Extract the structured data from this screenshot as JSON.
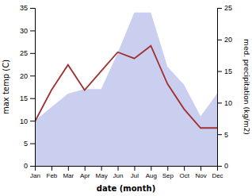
{
  "chart_data": {
    "type": "area",
    "categories": [
      "Jan",
      "Feb",
      "Mar",
      "Apr",
      "May",
      "Jun",
      "Jul",
      "Aug",
      "Sep",
      "Oct",
      "Nov",
      "Dec"
    ],
    "series": [
      {
        "type": "area",
        "color": "#b3b9e8",
        "values": [
          10,
          13,
          16,
          17,
          17,
          25,
          34,
          34,
          22,
          18,
          11,
          16
        ]
      },
      {
        "type": "line",
        "color": "#a03030",
        "axis": "y2",
        "values": [
          7,
          12,
          16,
          12,
          15,
          18,
          17,
          19,
          13,
          9,
          6,
          6
        ]
      }
    ],
    "ylim": [
      0,
      35
    ],
    "yticks": [
      0,
      5,
      10,
      15,
      20,
      25,
      30,
      35
    ],
    "y2lim": [
      0,
      25
    ],
    "y2ticks": [
      0,
      5,
      10,
      15,
      20,
      25
    ],
    "x_label": "date (month)",
    "y_label": "max temp (C)",
    "y2_label": "med. precipitation (kg/m2)",
    "grid": false
  }
}
